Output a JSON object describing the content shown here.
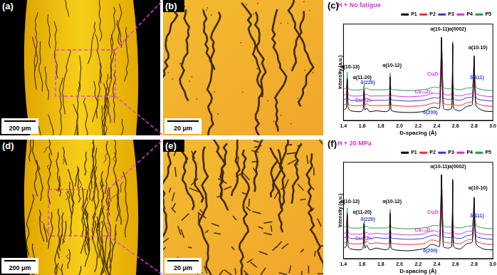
{
  "panels": {
    "a": {
      "label": "(a)",
      "scale_bar": "200 μm"
    },
    "b": {
      "label": "(b)",
      "scale_bar": "20 μm"
    },
    "d": {
      "label": "(d)",
      "scale_bar": "200 μm"
    },
    "e": {
      "label": "(e)",
      "scale_bar": "20 μm"
    }
  },
  "chart_data": [
    {
      "type": "line",
      "panel_label": "(c)",
      "title": "H + No fatigue",
      "x_label": "D-spacing (Å)",
      "y_label": "Intensity (a.u.)",
      "x": [
        1.4,
        1.43,
        1.44,
        1.45,
        1.48,
        1.58,
        1.61,
        1.62,
        1.63,
        1.65,
        1.68,
        1.75,
        1.85,
        1.89,
        1.9,
        1.91,
        1.95,
        2.1,
        2.25,
        2.3,
        2.33,
        2.37,
        2.43,
        2.45,
        2.47,
        2.52,
        2.56,
        2.57,
        2.58,
        2.65,
        2.72,
        2.78,
        2.8,
        2.82,
        2.9,
        3.0
      ],
      "series": [
        {
          "name": "P1",
          "color": "#000000",
          "values": [
            12,
            14,
            48,
            14,
            11,
            10,
            12,
            36,
            12,
            14,
            10,
            11,
            10,
            12,
            50,
            12,
            10,
            9,
            10,
            12,
            14,
            15,
            14,
            95,
            14,
            12,
            14,
            88,
            14,
            11,
            16,
            18,
            74,
            17,
            11,
            10
          ]
        },
        {
          "name": "P2",
          "color": "#e8312f",
          "values": [
            18,
            19,
            46,
            19,
            17,
            17,
            18,
            34,
            18,
            19,
            17,
            17,
            17,
            18,
            47,
            18,
            17,
            16,
            17,
            18,
            19,
            20,
            20,
            93,
            20,
            18,
            19,
            86,
            19,
            17,
            20,
            22,
            70,
            21,
            17,
            16
          ]
        },
        {
          "name": "P3",
          "color": "#2a3fd6",
          "values": [
            24,
            25,
            46,
            25,
            23,
            23,
            24,
            34,
            24,
            25,
            23,
            23,
            23,
            24,
            47,
            24,
            23,
            22,
            23,
            24,
            25,
            26,
            26,
            92,
            26,
            24,
            25,
            86,
            25,
            23,
            26,
            27,
            68,
            26,
            23,
            22
          ]
        },
        {
          "name": "P4",
          "color": "#d633d6",
          "values": [
            29,
            30,
            46,
            30,
            28,
            28,
            29,
            34,
            29,
            30,
            28,
            28,
            28,
            29,
            47,
            29,
            28,
            27,
            28,
            29,
            30,
            31,
            31,
            92,
            31,
            29,
            30,
            86,
            30,
            28,
            30,
            31,
            68,
            31,
            28,
            27
          ]
        },
        {
          "name": "P5",
          "color": "#1f9e3a",
          "values": [
            36,
            37,
            55,
            37,
            35,
            35,
            36,
            40,
            36,
            37,
            35,
            35,
            35,
            36,
            54,
            36,
            35,
            34,
            35,
            36,
            37,
            38,
            38,
            95,
            38,
            36,
            37,
            90,
            37,
            35,
            37,
            38,
            72,
            38,
            35,
            34
          ]
        }
      ],
      "annotations": [
        {
          "text": "α(10-13)",
          "x": 1.47,
          "y": 58,
          "color": "#000000"
        },
        {
          "text": "α(11-20)",
          "x": 1.6,
          "y": 46,
          "color": "#000000"
        },
        {
          "text": "δ(220)",
          "x": 1.66,
          "y": 40,
          "color": "#2a3fd6"
        },
        {
          "text": "α(10-12)",
          "x": 1.92,
          "y": 60,
          "color": "#000000"
        },
        {
          "text": "Cu₁₀Zr₇",
          "x": 1.62,
          "y": 20,
          "color": "#d633d6"
        },
        {
          "text": "Cu₁₀Zr₇",
          "x": 2.26,
          "y": 30,
          "color": "#d633d6"
        },
        {
          "text": "δ(200)",
          "x": 2.33,
          "y": 6,
          "color": "#2a3fd6"
        },
        {
          "text": "CuZr",
          "x": 2.36,
          "y": 50,
          "color": "#d633d6"
        },
        {
          "text": "α(10-11)",
          "x": 2.43,
          "y": 101,
          "color": "#000000"
        },
        {
          "text": "α(0002)",
          "x": 2.62,
          "y": 101,
          "color": "#000000"
        },
        {
          "text": "α(10-10)",
          "x": 2.84,
          "y": 80,
          "color": "#000000"
        },
        {
          "text": "δ(111)",
          "x": 2.83,
          "y": 46,
          "color": "#2a3fd6"
        }
      ],
      "xlim": [
        1.4,
        3.0
      ],
      "xticks": [
        1.4,
        1.6,
        1.8,
        {
          "value": 2.0,
          "label": "2.0"
        },
        2.2,
        2.4,
        2.6,
        2.8,
        {
          "value": 3.0,
          "label": "3.0"
        }
      ],
      "ylim": [
        0,
        110
      ],
      "tick_labels": "x",
      "grid": false,
      "legend": "top"
    },
    {
      "type": "line",
      "panel_label": "(f)",
      "title": "H + 20 MPa",
      "x_label": "D-spacing (Å)",
      "y_label": "Intensity (a.u.)",
      "x": [
        1.4,
        1.43,
        1.44,
        1.45,
        1.48,
        1.58,
        1.61,
        1.62,
        1.63,
        1.65,
        1.68,
        1.75,
        1.85,
        1.89,
        1.9,
        1.91,
        1.95,
        2.1,
        2.25,
        2.3,
        2.33,
        2.37,
        2.43,
        2.45,
        2.47,
        2.52,
        2.56,
        2.57,
        2.58,
        2.65,
        2.72,
        2.78,
        2.8,
        2.82,
        2.9,
        3.0
      ],
      "series": [
        {
          "name": "P1",
          "color": "#000000",
          "values": [
            12,
            14,
            52,
            14,
            11,
            10,
            12,
            40,
            12,
            15,
            10,
            12,
            10,
            12,
            52,
            12,
            10,
            9,
            11,
            13,
            16,
            16,
            14,
            96,
            14,
            12,
            14,
            90,
            14,
            11,
            17,
            19,
            70,
            17,
            11,
            10
          ]
        },
        {
          "name": "P2",
          "color": "#e8312f",
          "values": [
            18,
            19,
            50,
            19,
            17,
            17,
            18,
            38,
            18,
            20,
            17,
            18,
            17,
            18,
            50,
            18,
            17,
            16,
            17,
            19,
            21,
            21,
            20,
            94,
            20,
            18,
            19,
            88,
            19,
            17,
            21,
            23,
            68,
            21,
            17,
            16
          ]
        },
        {
          "name": "P3",
          "color": "#2a3fd6",
          "values": [
            24,
            25,
            50,
            25,
            23,
            23,
            24,
            37,
            24,
            25,
            23,
            24,
            23,
            24,
            49,
            24,
            23,
            22,
            23,
            25,
            26,
            27,
            26,
            93,
            26,
            24,
            25,
            87,
            25,
            23,
            26,
            28,
            66,
            26,
            23,
            22
          ]
        },
        {
          "name": "P4",
          "color": "#d633d6",
          "values": [
            29,
            30,
            50,
            30,
            28,
            28,
            29,
            37,
            29,
            30,
            28,
            29,
            28,
            29,
            49,
            29,
            28,
            27,
            28,
            30,
            31,
            32,
            31,
            93,
            31,
            29,
            30,
            87,
            30,
            28,
            31,
            32,
            66,
            31,
            28,
            27
          ]
        },
        {
          "name": "P5",
          "color": "#1f9e3a",
          "values": [
            36,
            37,
            58,
            37,
            35,
            35,
            36,
            42,
            36,
            37,
            35,
            35,
            35,
            36,
            56,
            36,
            35,
            34,
            35,
            36,
            37,
            38,
            38,
            96,
            38,
            36,
            37,
            91,
            37,
            35,
            37,
            38,
            70,
            38,
            35,
            34
          ]
        }
      ],
      "annotations": [
        {
          "text": "α(10-13)",
          "x": 1.47,
          "y": 62,
          "color": "#000000"
        },
        {
          "text": "α(11-20)",
          "x": 1.6,
          "y": 50,
          "color": "#000000"
        },
        {
          "text": "δ(220)",
          "x": 1.66,
          "y": 42,
          "color": "#2a3fd6"
        },
        {
          "text": "α(10-12)",
          "x": 1.92,
          "y": 62,
          "color": "#000000"
        },
        {
          "text": "Cu₁₀Zr₇",
          "x": 1.62,
          "y": 20,
          "color": "#d633d6"
        },
        {
          "text": "Cu₁₀Zr₇",
          "x": 2.26,
          "y": 30,
          "color": "#d633d6"
        },
        {
          "text": "δ(200)",
          "x": 2.33,
          "y": 6,
          "color": "#2a3fd6"
        },
        {
          "text": "CuZr",
          "x": 2.36,
          "y": 50,
          "color": "#d633d6"
        },
        {
          "text": "α(10-11)",
          "x": 2.43,
          "y": 102,
          "color": "#000000"
        },
        {
          "text": "α(0002)",
          "x": 2.62,
          "y": 102,
          "color": "#000000"
        },
        {
          "text": "α(10-10)",
          "x": 2.84,
          "y": 78,
          "color": "#000000"
        },
        {
          "text": "δ(111)",
          "x": 2.83,
          "y": 46,
          "color": "#2a3fd6"
        }
      ],
      "xlim": [
        1.4,
        3.0
      ],
      "xticks": [
        1.4,
        1.6,
        1.8,
        {
          "value": 2.0,
          "label": "2.0"
        },
        2.2,
        2.4,
        2.6,
        2.8,
        {
          "value": 3.0,
          "label": "3.0"
        }
      ],
      "ylim": [
        0,
        110
      ],
      "tick_labels": "x",
      "grid": false,
      "legend": "top"
    }
  ]
}
